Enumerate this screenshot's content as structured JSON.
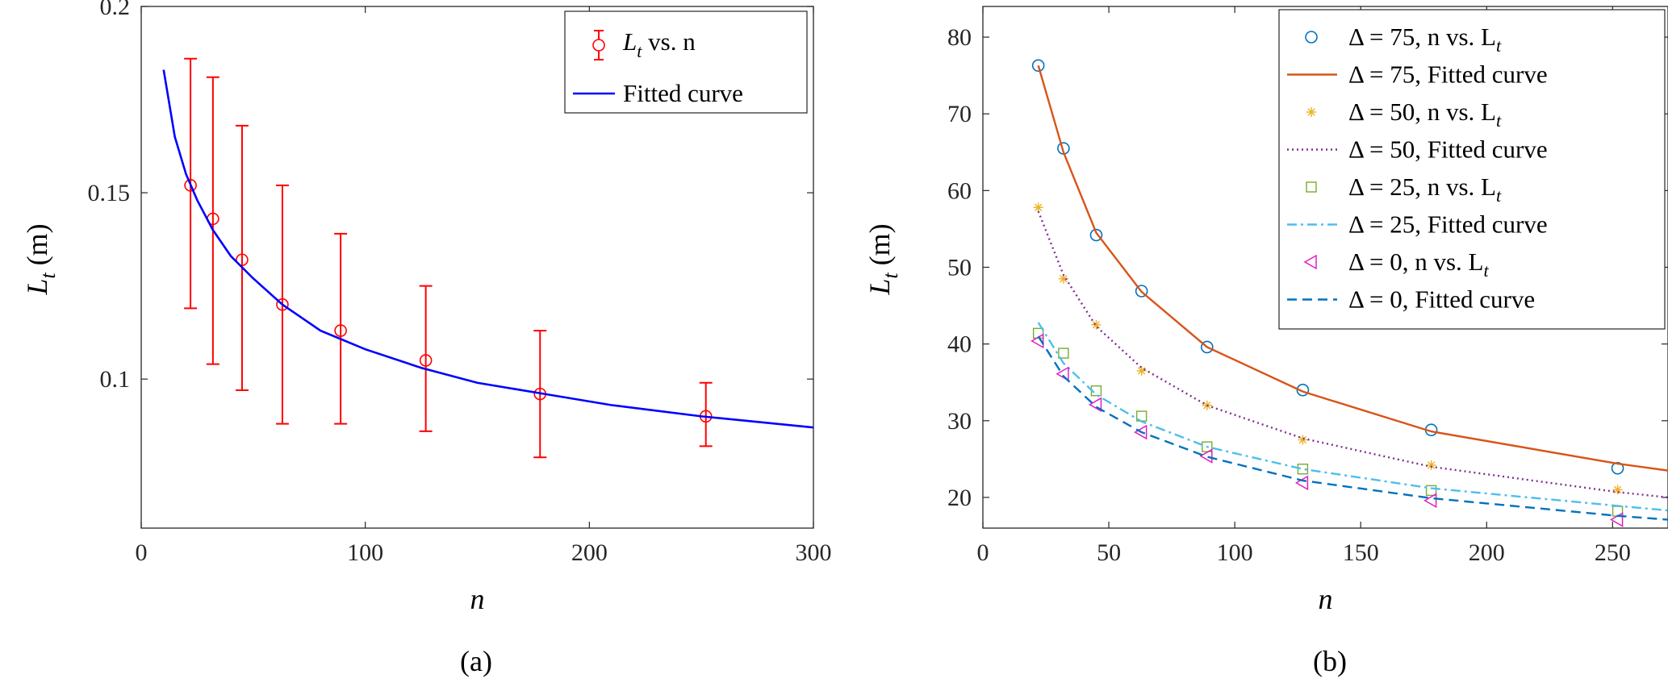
{
  "chart_data": [
    {
      "panel": "a",
      "caption": "(a)",
      "type": "line",
      "xlabel": "n",
      "ylabel_main": "L",
      "ylabel_sub": "t",
      "ylabel_unit": " (m)",
      "xlim": [
        0,
        300
      ],
      "ylim": [
        0.06,
        0.2
      ],
      "xticks": [
        0,
        100,
        200,
        300
      ],
      "xtick_labels": [
        "0",
        "100",
        "200",
        "300"
      ],
      "yticks": [
        0.1,
        0.15,
        0.2
      ],
      "ytick_labels": [
        "0.1",
        "0.15",
        "0.2"
      ],
      "grid": false,
      "legend_position": "top-right",
      "legend": [
        {
          "label_main": "L",
          "label_sub": "t",
          "label_rest": " vs. n",
          "marker": "circle-errorbar",
          "color": "#ff0000"
        },
        {
          "label_main": "Fitted curve",
          "label_sub": "",
          "label_rest": "",
          "marker": "line",
          "color": "#0000ff"
        }
      ],
      "series": [
        {
          "name": "Lt vs. n",
          "type": "errorbar",
          "color": "#ff0000",
          "x": [
            22,
            32,
            45,
            63,
            89,
            127,
            178,
            252
          ],
          "y": [
            0.152,
            0.143,
            0.132,
            0.12,
            0.113,
            0.105,
            0.096,
            0.09
          ],
          "y_low": [
            0.119,
            0.104,
            0.097,
            0.088,
            0.088,
            0.086,
            0.079,
            0.082
          ],
          "y_high": [
            0.186,
            0.181,
            0.168,
            0.152,
            0.139,
            0.125,
            0.113,
            0.099
          ]
        },
        {
          "name": "Fitted curve",
          "type": "line",
          "color": "#0000ff",
          "x": [
            10,
            15,
            20,
            25,
            32,
            40,
            50,
            63,
            80,
            100,
            125,
            150,
            180,
            210,
            250,
            300
          ],
          "y": [
            0.183,
            0.165,
            0.155,
            0.148,
            0.14,
            0.133,
            0.127,
            0.12,
            0.113,
            0.108,
            0.103,
            0.099,
            0.096,
            0.093,
            0.09,
            0.087
          ]
        }
      ]
    },
    {
      "panel": "b",
      "caption": "(b)",
      "type": "line",
      "xlabel": "n",
      "ylabel_main": "L",
      "ylabel_sub": "t",
      "ylabel_unit": " (m)",
      "xlim": [
        0,
        272
      ],
      "ylim": [
        16,
        84
      ],
      "xticks": [
        0,
        50,
        100,
        150,
        200,
        250
      ],
      "xtick_labels": [
        "0",
        "50",
        "100",
        "150",
        "200",
        "250"
      ],
      "yticks": [
        20,
        30,
        40,
        50,
        60,
        70,
        80
      ],
      "ytick_labels": [
        "20",
        "30",
        "40",
        "50",
        "60",
        "70",
        "80"
      ],
      "grid": false,
      "legend_position": "top-right",
      "legend": [
        {
          "label": "Δ = 75,  n vs. L",
          "sub": "t",
          "marker": "circle",
          "color": "#0072bd"
        },
        {
          "label": "Δ = 75, Fitted curve",
          "sub": "",
          "marker": "solid",
          "color": "#d95319"
        },
        {
          "label": "Δ = 50,  n vs. L",
          "sub": "t",
          "marker": "asterisk",
          "color": "#edb120"
        },
        {
          "label": "Δ = 50, Fitted curve",
          "sub": "",
          "marker": "dotted",
          "color": "#7e2f8e"
        },
        {
          "label": "Δ = 25,  n vs. L",
          "sub": "t",
          "marker": "square",
          "color": "#77ac30"
        },
        {
          "label": "Δ = 25, Fitted curve",
          "sub": "",
          "marker": "dashdot",
          "color": "#4dbeee"
        },
        {
          "label": "Δ = 0,  n vs. L",
          "sub": "t",
          "marker": "triangle-left",
          "color": "#e020c0"
        },
        {
          "label": "Δ = 0, Fitted curve",
          "sub": "",
          "marker": "dashed",
          "color": "#0072bd"
        }
      ],
      "series": [
        {
          "name": "Δ = 75, n vs. Lt",
          "type": "scatter",
          "marker": "circle",
          "color": "#0072bd",
          "x": [
            22,
            32,
            45,
            63,
            89,
            127,
            178,
            252
          ],
          "y": [
            76.3,
            65.5,
            54.2,
            46.9,
            39.6,
            34.0,
            28.8,
            23.8
          ]
        },
        {
          "name": "Δ = 75, Fitted curve",
          "type": "line",
          "dash": "solid",
          "color": "#d95319",
          "x": [
            22,
            32,
            45,
            63,
            89,
            127,
            178,
            252,
            272
          ],
          "y": [
            76.3,
            65.0,
            54.5,
            46.8,
            39.6,
            33.8,
            28.6,
            24.4,
            23.5
          ]
        },
        {
          "name": "Δ = 50, n vs. Lt",
          "type": "scatter",
          "marker": "asterisk",
          "color": "#edb120",
          "x": [
            22,
            32,
            45,
            63,
            89,
            127,
            178,
            252
          ],
          "y": [
            57.8,
            48.5,
            42.5,
            36.5,
            32.0,
            27.5,
            24.2,
            21.0
          ]
        },
        {
          "name": "Δ = 50, Fitted curve",
          "type": "line",
          "dash": "dotted",
          "color": "#7e2f8e",
          "x": [
            22,
            32,
            45,
            63,
            89,
            127,
            178,
            252,
            272
          ],
          "y": [
            57.3,
            49.0,
            42.3,
            36.9,
            32.0,
            27.7,
            24.0,
            20.7,
            20.0
          ]
        },
        {
          "name": "Δ = 25, n vs. Lt",
          "type": "scatter",
          "marker": "square",
          "color": "#77ac30",
          "x": [
            22,
            32,
            45,
            63,
            89,
            127,
            178,
            252
          ],
          "y": [
            41.4,
            38.8,
            33.9,
            30.6,
            26.6,
            23.7,
            20.9,
            18.2
          ]
        },
        {
          "name": "Δ = 25, Fitted curve",
          "type": "line",
          "dash": "dashdot",
          "color": "#4dbeee",
          "x": [
            22,
            32,
            45,
            63,
            89,
            127,
            178,
            252,
            272
          ],
          "y": [
            42.8,
            37.5,
            33.4,
            29.9,
            26.6,
            23.7,
            21.2,
            18.9,
            18.3
          ]
        },
        {
          "name": "Δ = 0, n vs. Lt",
          "type": "scatter",
          "marker": "triangle-left",
          "color": "#e020c0",
          "x": [
            22,
            32,
            45,
            63,
            89,
            127,
            178,
            252
          ],
          "y": [
            40.4,
            36.1,
            32.1,
            28.5,
            25.4,
            21.9,
            19.6,
            17.1
          ]
        },
        {
          "name": "Δ = 0, Fitted curve",
          "type": "line",
          "dash": "dashed",
          "color": "#0072bd",
          "x": [
            22,
            32,
            45,
            63,
            89,
            127,
            178,
            252,
            272
          ],
          "y": [
            41.0,
            35.8,
            31.8,
            28.5,
            25.3,
            22.2,
            19.9,
            17.6,
            17.1
          ]
        }
      ]
    }
  ]
}
